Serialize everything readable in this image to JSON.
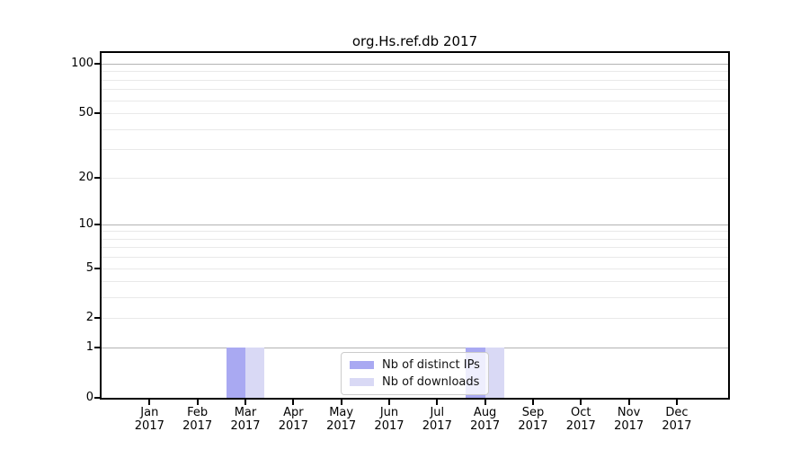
{
  "chart_data": {
    "type": "bar",
    "title": "org.Hs.ref.db 2017",
    "categories": [
      "Jan",
      "Feb",
      "Mar",
      "Apr",
      "May",
      "Jun",
      "Jul",
      "Aug",
      "Sep",
      "Oct",
      "Nov",
      "Dec"
    ],
    "category_year": "2017",
    "series": [
      {
        "name": "Nb of distinct IPs",
        "color": "#a9a9f2",
        "values": [
          0,
          0,
          1,
          0,
          0,
          0,
          0,
          1,
          0,
          0,
          0,
          0
        ]
      },
      {
        "name": "Nb of downloads",
        "color": "#d9d9f5",
        "values": [
          0,
          0,
          1,
          0,
          0,
          0,
          0,
          1,
          0,
          0,
          0,
          0
        ]
      }
    ],
    "xlabel": "",
    "ylabel": "",
    "yscale": "log1p",
    "ylim": [
      0,
      116
    ],
    "yticks": [
      100,
      50,
      20,
      10,
      5,
      2,
      1,
      0
    ],
    "grid": {
      "major": [
        1,
        10,
        100
      ],
      "minor": [
        2,
        3,
        4,
        5,
        6,
        7,
        8,
        9,
        20,
        30,
        40,
        50,
        60,
        70,
        80,
        90
      ]
    },
    "legend": {
      "position": "lower center",
      "frame_alpha": 0.8
    },
    "colors": {
      "axis": "#000000",
      "major_grid": "#b3b3b3",
      "minor_grid": "#e9e9e9",
      "background": "#ffffff"
    }
  }
}
